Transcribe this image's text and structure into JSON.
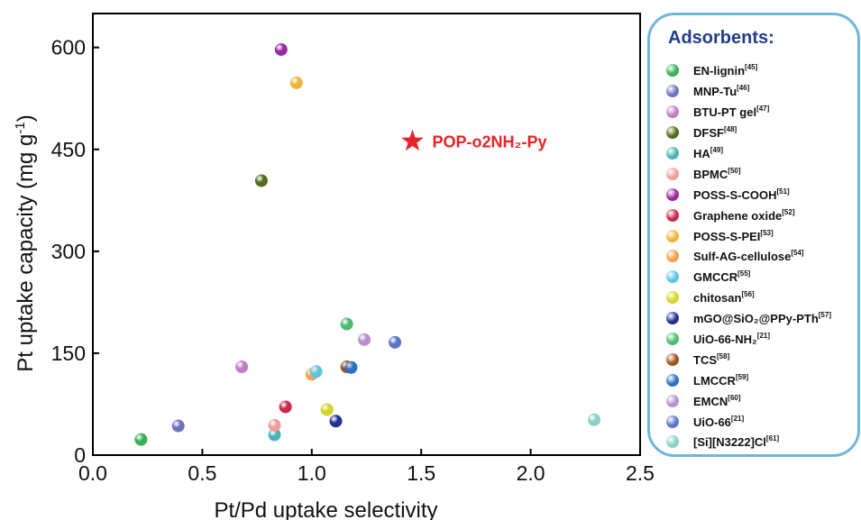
{
  "chart_data": {
    "type": "scatter",
    "xlabel": "Pt/Pd uptake selectivity",
    "ylabel_main": "Pt uptake capacity (mg g",
    "ylabel_sup": "-1",
    "ylabel_end": ")",
    "xlim": [
      0,
      2.5
    ],
    "ylim": [
      0,
      650
    ],
    "xticks": [
      "0.0",
      "0.5",
      "1.0",
      "1.5",
      "2.0",
      "2.5"
    ],
    "yticks": [
      "0",
      "150",
      "300",
      "450",
      "600"
    ],
    "highlight": {
      "x": 1.46,
      "y": 462,
      "label": "POP-o2NH₂-Py",
      "color": "#e8232a"
    },
    "legend_title": "Adsorbents:",
    "series": [
      {
        "name": "EN-lignin",
        "ref": "[45]",
        "color": "#3dae58",
        "points": [
          [
            0.22,
            23
          ]
        ]
      },
      {
        "name": "MNP-Tu",
        "ref": "[46]",
        "color": "#6d74c0",
        "points": [
          [
            0.39,
            43
          ]
        ]
      },
      {
        "name": "BTU-PT gel",
        "ref": "[47]",
        "color": "#c07fc4",
        "points": [
          [
            0.68,
            130
          ]
        ]
      },
      {
        "name": "DFSF",
        "ref": "[48]",
        "color": "#556b1f",
        "points": [
          [
            0.77,
            404
          ]
        ]
      },
      {
        "name": "HA",
        "ref": "[49]",
        "color": "#4bb3b3",
        "points": [
          [
            0.83,
            30
          ]
        ]
      },
      {
        "name": "BPMC",
        "ref": "[50]",
        "color": "#f49b9b",
        "points": [
          [
            0.83,
            44
          ]
        ]
      },
      {
        "name": "POSS-S-COOH",
        "ref": "[51]",
        "color": "#9b2ba0",
        "points": [
          [
            0.86,
            597
          ]
        ]
      },
      {
        "name": "Graphene oxide",
        "ref": "[52]",
        "color": "#c72a4c",
        "points": [
          [
            0.88,
            71
          ]
        ]
      },
      {
        "name": "POSS-S-PEI",
        "ref": "[53]",
        "color": "#f0b43c",
        "points": [
          [
            0.93,
            548
          ]
        ]
      },
      {
        "name": "Sulf-AG-cellulose",
        "ref": "[54]",
        "color": "#f5a04a",
        "points": [
          [
            1.0,
            119
          ]
        ]
      },
      {
        "name": "GMCCR",
        "ref": "[55]",
        "color": "#5cc5e3",
        "points": [
          [
            1.02,
            123
          ]
        ]
      },
      {
        "name": "chitosan",
        "ref": "[56]",
        "color": "#d4d42a",
        "points": [
          [
            1.07,
            67
          ]
        ]
      },
      {
        "name": "mGO@SiO₂@PPy-PTh",
        "ref": "[57]",
        "color": "#25308f",
        "points": [
          [
            1.11,
            50
          ]
        ]
      },
      {
        "name": "UiO-66-NH₂",
        "ref": "[21]",
        "color": "#4cbc6a",
        "points": [
          [
            1.16,
            193
          ]
        ]
      },
      {
        "name": "TCS",
        "ref": "[58]",
        "color": "#9c5320",
        "points": [
          [
            1.16,
            130
          ]
        ]
      },
      {
        "name": "LMCCR",
        "ref": "[59]",
        "color": "#2f6ec7",
        "points": [
          [
            1.18,
            129
          ]
        ]
      },
      {
        "name": "EMCN",
        "ref": "[60]",
        "color": "#b68fd1",
        "points": [
          [
            1.24,
            170
          ]
        ]
      },
      {
        "name": "UiO-66",
        "ref": "[21]",
        "color": "#5a77c4",
        "points": [
          [
            1.38,
            166
          ]
        ]
      },
      {
        "name": "[Si][N3222]Cl",
        "ref": "[61]",
        "color": "#8cd0c4",
        "points": [
          [
            2.29,
            52
          ]
        ]
      }
    ]
  }
}
